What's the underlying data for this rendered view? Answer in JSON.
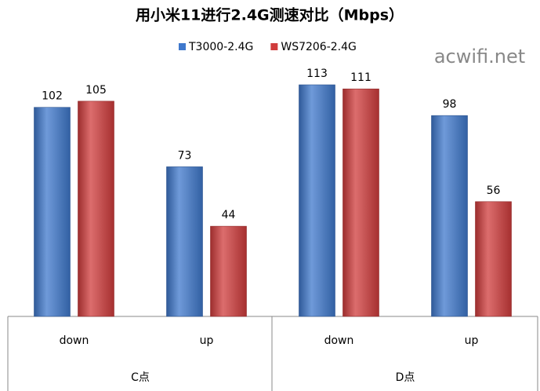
{
  "chart_data": {
    "type": "bar",
    "title": "用小米11进行2.4G测速对比（Mbps）",
    "watermark": "acwifi.net",
    "categories": [
      "down",
      "up",
      "down",
      "up"
    ],
    "category_groups": [
      "C点",
      "D点"
    ],
    "series": [
      {
        "name": "T3000-2.4G",
        "color": "#3f78cc",
        "values": [
          102,
          73,
          113,
          98
        ]
      },
      {
        "name": "WS7206-2.4G",
        "color": "#d03c3c",
        "values": [
          105,
          44,
          111,
          56
        ]
      }
    ]
  }
}
